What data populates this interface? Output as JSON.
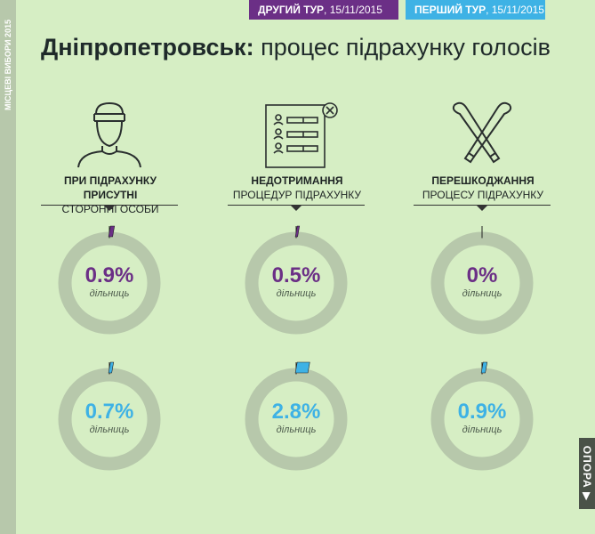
{
  "sidebar": {
    "label": "МІСЦЕВІ ВИБОРИ 2015"
  },
  "tags": {
    "second_round_label": "ДРУГИЙ ТУР",
    "second_round_date": "15/11/2015",
    "first_round_label": "ПЕРШИЙ ТУР",
    "first_round_date": "15/11/2015"
  },
  "title": {
    "city": "Дніпропетровськ:",
    "rest": "процес підрахунку голосів"
  },
  "categories": [
    {
      "line1": "ПРИ ПІДРАХУНКУ ПРИСУТНІ",
      "line2": "СТОРОННІ ОСОБИ",
      "icon": "person-with-cap-icon"
    },
    {
      "line1": "НЕДОТРИМАННЯ",
      "line2": "ПРОЦЕДУР ПІДРАХУНКУ",
      "icon": "document-list-icon"
    },
    {
      "line1": "ПЕРЕШКОДЖАННЯ",
      "line2": "ПРОЦЕСУ ПІДРАХУНКУ",
      "icon": "crossed-bats-icon"
    }
  ],
  "chart_data": {
    "type": "pie",
    "unit_label": "дільниць",
    "series": [
      {
        "round": "second",
        "color": "#6b2f86",
        "values": [
          0.9,
          0.5,
          0
        ],
        "labels": [
          "0.9%",
          "0.5%",
          "0%"
        ]
      },
      {
        "round": "first",
        "color": "#3eb2e5",
        "values": [
          0.7,
          2.8,
          0.9
        ],
        "labels": [
          "0.7%",
          "2.8%",
          "0.9%"
        ]
      }
    ],
    "ring_color": "#b7c8ab"
  },
  "logo": {
    "text": "ОПОРА ▶"
  }
}
